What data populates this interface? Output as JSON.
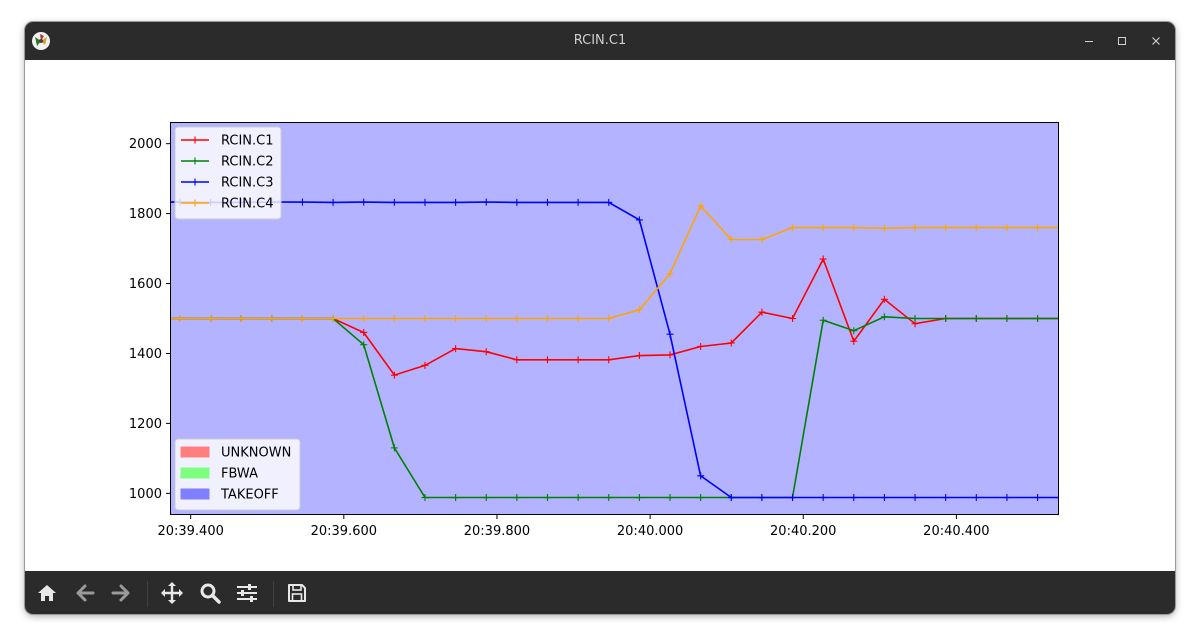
{
  "window": {
    "title": "RCIN.C1"
  },
  "toolbar": {
    "buttons": [
      {
        "name": "home",
        "icon": "home-icon"
      },
      {
        "name": "back",
        "icon": "arrow-left-icon"
      },
      {
        "name": "forward",
        "icon": "arrow-right-icon"
      },
      {
        "name": "pan",
        "icon": "move-icon"
      },
      {
        "name": "zoom",
        "icon": "magnifier-icon"
      },
      {
        "name": "configure",
        "icon": "sliders-icon"
      },
      {
        "name": "save",
        "icon": "floppy-icon"
      }
    ]
  },
  "chart_data": {
    "type": "line",
    "title": "",
    "xlabel": "",
    "ylabel": "",
    "xlim": [
      39.373,
      40.534
    ],
    "ylim": [
      938,
      2062
    ],
    "x_ticks": [
      {
        "value": 39.4,
        "label": "20:39.400"
      },
      {
        "value": 39.6,
        "label": "20:39.600"
      },
      {
        "value": 39.8,
        "label": "20:39.800"
      },
      {
        "value": 40.0,
        "label": "20:40.000"
      },
      {
        "value": 40.2,
        "label": "20:40.200"
      },
      {
        "value": 40.4,
        "label": "20:40.400"
      }
    ],
    "y_ticks": [
      1000,
      1200,
      1400,
      1600,
      1800,
      2000
    ],
    "background_mode": {
      "label": "TAKEOFF",
      "color": "#b3b3ff"
    },
    "mode_legend": [
      {
        "label": "UNKNOWN",
        "color": "#ff7f7f"
      },
      {
        "label": "FBWA",
        "color": "#7fff7f"
      },
      {
        "label": "TAKEOFF",
        "color": "#7f7fff"
      }
    ],
    "series": [
      {
        "name": "RCIN.C1",
        "color": "#ff0000",
        "x": [
          39.373,
          39.386,
          39.426,
          39.466,
          39.506,
          39.546,
          39.586,
          39.626,
          39.666,
          39.706,
          39.746,
          39.786,
          39.826,
          39.866,
          39.906,
          39.946,
          39.986,
          40.026,
          40.066,
          40.106,
          40.146,
          40.186,
          40.226,
          40.266,
          40.306,
          40.346,
          40.386,
          40.426,
          40.466,
          40.506,
          40.534
        ],
        "y": [
          1500,
          1500,
          1500,
          1500,
          1500,
          1500,
          1500,
          1460,
          1338,
          1366,
          1414,
          1405,
          1382,
          1382,
          1382,
          1382,
          1394,
          1396,
          1420,
          1430,
          1518,
          1500,
          1670,
          1435,
          1555,
          1485,
          1500,
          1500,
          1500,
          1500,
          1500
        ]
      },
      {
        "name": "RCIN.C2",
        "color": "#008000",
        "x": [
          39.373,
          39.386,
          39.426,
          39.466,
          39.506,
          39.546,
          39.586,
          39.626,
          39.666,
          39.706,
          39.746,
          39.786,
          39.826,
          39.866,
          39.906,
          39.946,
          39.986,
          40.026,
          40.066,
          40.106,
          40.146,
          40.186,
          40.226,
          40.266,
          40.306,
          40.346,
          40.386,
          40.426,
          40.466,
          40.506,
          40.534
        ],
        "y": [
          1500,
          1500,
          1500,
          1500,
          1500,
          1500,
          1500,
          1425,
          1130,
          988,
          988,
          988,
          988,
          988,
          988,
          988,
          988,
          988,
          988,
          988,
          988,
          988,
          1495,
          1465,
          1505,
          1500,
          1500,
          1500,
          1500,
          1500,
          1500
        ]
      },
      {
        "name": "RCIN.C3",
        "color": "#0000ff",
        "x": [
          39.373,
          39.386,
          39.426,
          39.466,
          39.506,
          39.546,
          39.586,
          39.626,
          39.666,
          39.706,
          39.746,
          39.786,
          39.826,
          39.866,
          39.906,
          39.946,
          39.986,
          40.026,
          40.066,
          40.106,
          40.146,
          40.186,
          40.226,
          40.266,
          40.306,
          40.346,
          40.386,
          40.426,
          40.466,
          40.506,
          40.534
        ],
        "y": [
          1833,
          1833,
          1832,
          1832,
          1833,
          1833,
          1832,
          1833,
          1832,
          1832,
          1832,
          1833,
          1832,
          1832,
          1832,
          1832,
          1782,
          1455,
          1050,
          988,
          988,
          988,
          988,
          988,
          988,
          988,
          988,
          988,
          988,
          988,
          988
        ]
      },
      {
        "name": "RCIN.C4",
        "color": "#ffa500",
        "x": [
          39.373,
          39.386,
          39.426,
          39.466,
          39.506,
          39.546,
          39.586,
          39.626,
          39.666,
          39.706,
          39.746,
          39.786,
          39.826,
          39.866,
          39.906,
          39.946,
          39.986,
          40.026,
          40.066,
          40.106,
          40.146,
          40.186,
          40.226,
          40.266,
          40.306,
          40.346,
          40.386,
          40.426,
          40.466,
          40.506,
          40.534
        ],
        "y": [
          1500,
          1500,
          1500,
          1500,
          1500,
          1500,
          1500,
          1500,
          1500,
          1500,
          1500,
          1500,
          1500,
          1500,
          1500,
          1500,
          1525,
          1628,
          1822,
          1726,
          1726,
          1760,
          1760,
          1760,
          1758,
          1760,
          1760,
          1760,
          1760,
          1760,
          1760
        ]
      }
    ],
    "legend_placement": "upper-left",
    "mode_legend_placement": "lower-left",
    "grid": false
  }
}
